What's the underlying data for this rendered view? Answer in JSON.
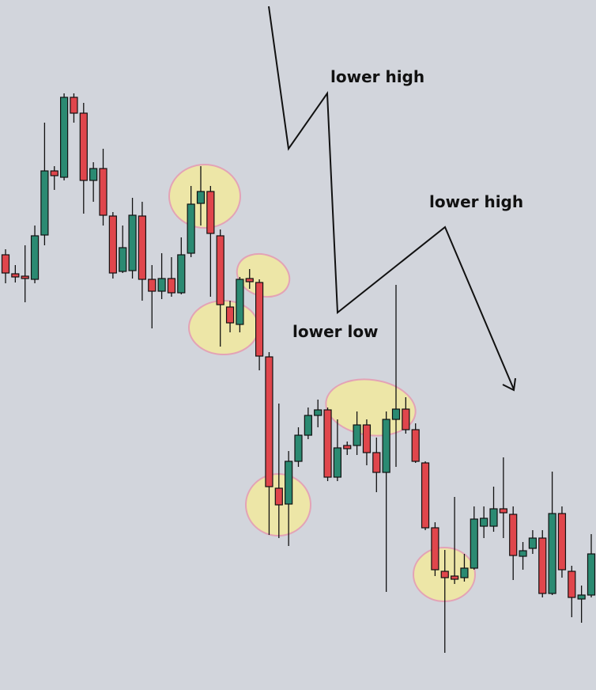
{
  "chart_data": {
    "type": "candlestick",
    "annotations": [
      "lower high",
      "lower high",
      "lower low"
    ],
    "open": [
      550,
      526,
      523,
      519,
      575,
      656,
      648,
      749,
      729,
      644,
      659,
      599,
      529,
      530,
      599,
      519,
      504,
      520,
      502,
      552,
      615,
      630,
      574,
      484,
      462,
      520,
      515,
      421,
      255,
      235,
      289,
      322,
      347,
      354,
      269,
      309,
      309,
      335,
      300,
      275,
      342,
      355,
      329,
      287,
      205,
      150,
      144,
      142,
      154,
      207,
      207,
      229,
      222,
      169,
      179,
      192,
      122,
      223,
      150,
      115,
      120
    ],
    "high": [
      557,
      537,
      562,
      587,
      717,
      662,
      754,
      754,
      742,
      667,
      684,
      604,
      587,
      622,
      617,
      537,
      552,
      547,
      572,
      637,
      662,
      637,
      582,
      492,
      522,
      532,
      519,
      427,
      362,
      302,
      332,
      357,
      367,
      357,
      342,
      314,
      352,
      342,
      319,
      352,
      512,
      370,
      337,
      289,
      212,
      177,
      244,
      172,
      232,
      232,
      257,
      294,
      232,
      187,
      202,
      202,
      276,
      232,
      157,
      132,
      197
    ],
    "low": [
      514,
      515,
      490,
      514,
      562,
      632,
      644,
      717,
      602,
      617,
      587,
      520,
      527,
      520,
      492,
      457,
      494,
      497,
      500,
      547,
      587,
      497,
      434,
      452,
      452,
      507,
      404,
      196,
      192,
      182,
      282,
      317,
      332,
      264,
      264,
      297,
      297,
      284,
      250,
      124,
      282,
      324,
      287,
      202,
      144,
      47,
      134,
      137,
      152,
      192,
      200,
      192,
      139,
      152,
      172,
      117,
      120,
      142,
      92,
      85,
      117
    ],
    "close": [
      527,
      522,
      520,
      574,
      656,
      650,
      749,
      729,
      644,
      659,
      600,
      527,
      559,
      600,
      519,
      504,
      520,
      502,
      550,
      614,
      630,
      577,
      487,
      464,
      519,
      516,
      422,
      257,
      234,
      289,
      322,
      347,
      354,
      269,
      306,
      305,
      335,
      300,
      275,
      342,
      355,
      329,
      289,
      205,
      152,
      142,
      140,
      154,
      216,
      217,
      229,
      224,
      170,
      176,
      192,
      122,
      223,
      152,
      117,
      120,
      172
    ],
    "up_color": "#2b8a72",
    "down_color": "#e0464c",
    "ylim": [
      0,
      872
    ]
  }
}
